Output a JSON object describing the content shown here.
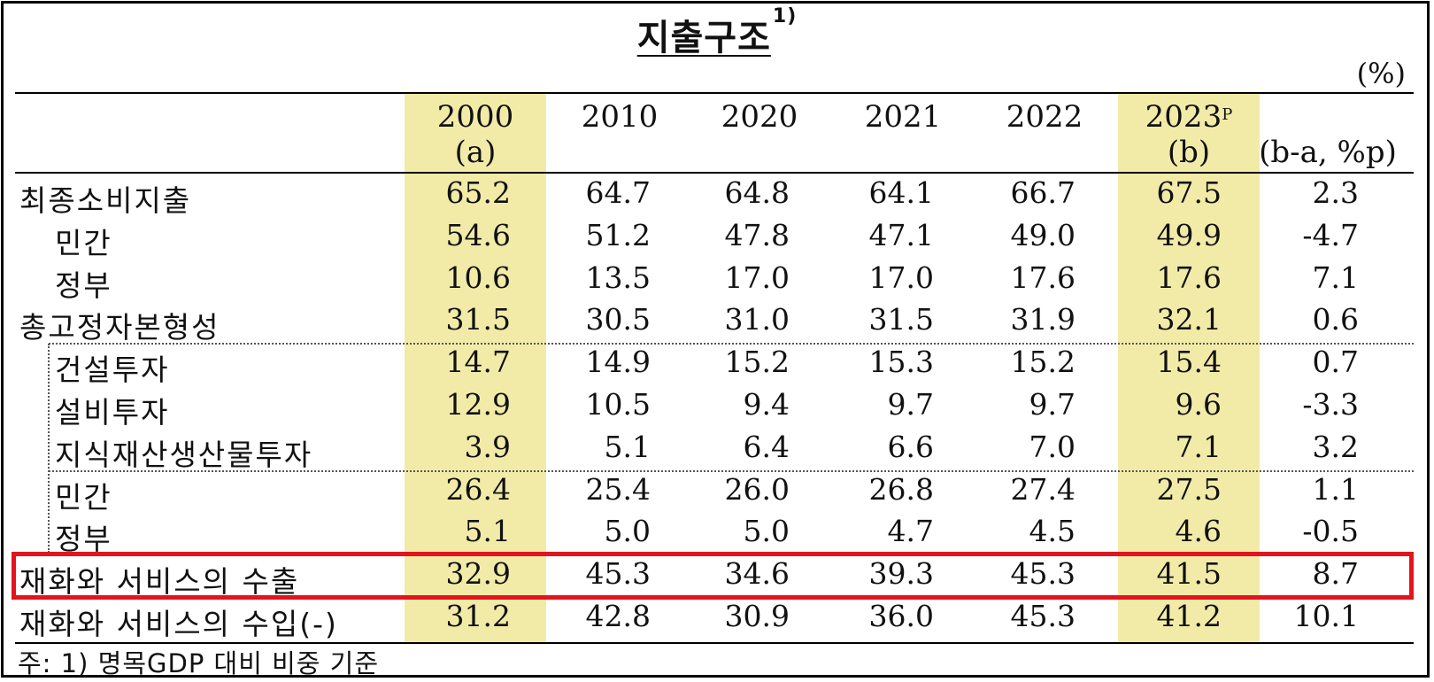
{
  "title": "지출구조",
  "title_note_mark": "1)",
  "unit": "(%)",
  "colors": {
    "highlight": "#f2eba8",
    "emphasis_box": "#e3141e"
  },
  "columns": [
    {
      "line1": "2000",
      "line2": "(a)",
      "sup": ""
    },
    {
      "line1": "2010",
      "line2": "",
      "sup": ""
    },
    {
      "line1": "2020",
      "line2": "",
      "sup": ""
    },
    {
      "line1": "2021",
      "line2": "",
      "sup": ""
    },
    {
      "line1": "2022",
      "line2": "",
      "sup": ""
    },
    {
      "line1": "2023",
      "line2": "(b)",
      "sup": "P"
    },
    {
      "line1": "",
      "line2": "(b-a,  %p)",
      "sup": ""
    }
  ],
  "rows": [
    {
      "label": "최종소비지출",
      "values": [
        "65.2",
        "64.7",
        "64.8",
        "64.1",
        "66.7",
        "67.5",
        "2.3"
      ]
    },
    {
      "label": "민간",
      "values": [
        "54.6",
        "51.2",
        "47.8",
        "47.1",
        "49.0",
        "49.9",
        "-4.7"
      ]
    },
    {
      "label": "정부",
      "values": [
        "10.6",
        "13.5",
        "17.0",
        "17.0",
        "17.6",
        "17.6",
        "7.1"
      ]
    },
    {
      "label": "총고정자본형성",
      "values": [
        "31.5",
        "30.5",
        "31.0",
        "31.5",
        "31.9",
        "32.1",
        "0.6"
      ]
    },
    {
      "label": "건설투자",
      "values": [
        "14.7",
        "14.9",
        "15.2",
        "15.3",
        "15.2",
        "15.4",
        "0.7"
      ]
    },
    {
      "label": "설비투자",
      "values": [
        "12.9",
        "10.5",
        "9.4",
        "9.7",
        "9.7",
        "9.6",
        "-3.3"
      ]
    },
    {
      "label": "지식재산생산물투자",
      "values": [
        "3.9",
        "5.1",
        "6.4",
        "6.6",
        "7.0",
        "7.1",
        "3.2"
      ]
    },
    {
      "label": "민간",
      "values": [
        "26.4",
        "25.4",
        "26.0",
        "26.8",
        "27.4",
        "27.5",
        "1.1"
      ]
    },
    {
      "label": "정부",
      "values": [
        "5.1",
        "5.0",
        "5.0",
        "4.7",
        "4.5",
        "4.6",
        "-0.5"
      ]
    },
    {
      "label": "재화와 서비스의 수출",
      "values": [
        "32.9",
        "45.3",
        "34.6",
        "39.3",
        "45.3",
        "41.5",
        "8.7"
      ]
    },
    {
      "label": "재화와 서비스의 수입(-)",
      "values": [
        "31.2",
        "42.8",
        "30.9",
        "36.0",
        "45.3",
        "41.2",
        "10.1"
      ]
    }
  ],
  "note": "주: 1) 명목GDP 대비 비중 기준"
}
